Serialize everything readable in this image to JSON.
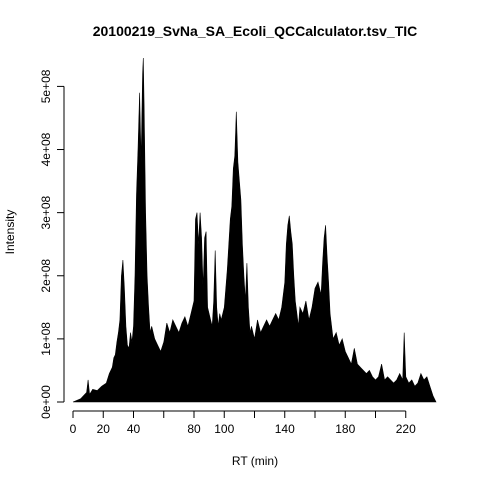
{
  "chart_data": {
    "type": "area",
    "title": "20100219_SvNa_SA_Ecoli_QCCalculator.tsv_TIC",
    "xlabel": "RT (min)",
    "ylabel": "Intensity",
    "xlim": [
      0,
      240
    ],
    "ylim": [
      0,
      545000000
    ],
    "x_ticks": [
      0,
      20,
      40,
      60,
      80,
      100,
      120,
      140,
      160,
      180,
      200,
      220
    ],
    "x_tick_labels": [
      "0",
      "20",
      "40",
      "",
      "80",
      "100",
      "",
      "140",
      "",
      "180",
      "",
      "220"
    ],
    "y_ticks": [
      0,
      100000000,
      200000000,
      300000000,
      400000000,
      500000000
    ],
    "y_tick_labels": [
      "0e+00",
      "1e+08",
      "2e+08",
      "3e+08",
      "4e+08",
      "5e+08"
    ],
    "grid": false,
    "series": [
      {
        "x": [
          0,
          5,
          9,
          10,
          11,
          13,
          16,
          19,
          22,
          24,
          26,
          27,
          28,
          29,
          30,
          31,
          32,
          33,
          34,
          35,
          36,
          37,
          38,
          39,
          40,
          41,
          42,
          43,
          44,
          45,
          46,
          46.5,
          47,
          48,
          49,
          50,
          51,
          52,
          54,
          56,
          58,
          60,
          62,
          64,
          66,
          68,
          70,
          72,
          74,
          76,
          78,
          80,
          81,
          82,
          83,
          84,
          85,
          86,
          87,
          88,
          89,
          90,
          91,
          92,
          93,
          94,
          95,
          96,
          97,
          98,
          100,
          102,
          104,
          105,
          106,
          107,
          108,
          109,
          110,
          111,
          112,
          113,
          114,
          115,
          116,
          117,
          118,
          120,
          122,
          124,
          126,
          128,
          130,
          132,
          134,
          136,
          138,
          140,
          141,
          142,
          143,
          144,
          145,
          146,
          147,
          148,
          149,
          150,
          152,
          154,
          156,
          158,
          160,
          162,
          164,
          165,
          166,
          167,
          168,
          169,
          170,
          171,
          172,
          174,
          176,
          178,
          180,
          182,
          184,
          186,
          188,
          190,
          192,
          194,
          196,
          198,
          200,
          202,
          204,
          206,
          208,
          210,
          212,
          214,
          216,
          218,
          219,
          220,
          222,
          224,
          226,
          228,
          230,
          232,
          234,
          236,
          238,
          240
        ],
        "y": [
          0,
          5000000,
          15000000,
          35000000,
          12000000,
          20000000,
          18000000,
          25000000,
          30000000,
          45000000,
          55000000,
          70000000,
          75000000,
          95000000,
          110000000,
          130000000,
          200000000,
          225000000,
          180000000,
          120000000,
          90000000,
          85000000,
          110000000,
          95000000,
          120000000,
          200000000,
          330000000,
          400000000,
          490000000,
          380000000,
          520000000,
          545000000,
          470000000,
          300000000,
          200000000,
          150000000,
          110000000,
          120000000,
          100000000,
          90000000,
          80000000,
          95000000,
          125000000,
          110000000,
          130000000,
          120000000,
          110000000,
          125000000,
          135000000,
          120000000,
          140000000,
          160000000,
          290000000,
          300000000,
          250000000,
          300000000,
          260000000,
          180000000,
          260000000,
          270000000,
          150000000,
          140000000,
          130000000,
          120000000,
          160000000,
          240000000,
          150000000,
          120000000,
          140000000,
          130000000,
          150000000,
          210000000,
          290000000,
          310000000,
          370000000,
          390000000,
          460000000,
          380000000,
          350000000,
          320000000,
          250000000,
          200000000,
          160000000,
          220000000,
          150000000,
          110000000,
          120000000,
          100000000,
          130000000,
          110000000,
          120000000,
          130000000,
          120000000,
          130000000,
          140000000,
          130000000,
          150000000,
          190000000,
          250000000,
          280000000,
          295000000,
          270000000,
          250000000,
          200000000,
          160000000,
          140000000,
          120000000,
          150000000,
          140000000,
          160000000,
          130000000,
          150000000,
          180000000,
          190000000,
          170000000,
          220000000,
          260000000,
          280000000,
          230000000,
          190000000,
          140000000,
          120000000,
          100000000,
          110000000,
          90000000,
          100000000,
          80000000,
          70000000,
          60000000,
          85000000,
          60000000,
          55000000,
          50000000,
          45000000,
          50000000,
          40000000,
          35000000,
          40000000,
          60000000,
          35000000,
          40000000,
          35000000,
          30000000,
          35000000,
          45000000,
          35000000,
          110000000,
          40000000,
          30000000,
          35000000,
          25000000,
          30000000,
          45000000,
          35000000,
          40000000,
          25000000,
          10000000,
          0
        ]
      }
    ]
  }
}
